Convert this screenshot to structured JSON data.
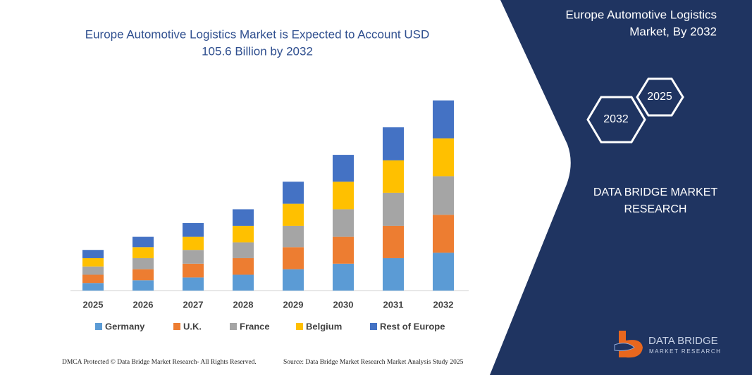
{
  "chart_data": {
    "type": "bar",
    "stacked": true,
    "title": "Europe Automotive Logistics Market is Expected to Account USD 105.6 Billion by 2032",
    "categories": [
      "2025",
      "2026",
      "2027",
      "2028",
      "2029",
      "2030",
      "2031",
      "2032"
    ],
    "series": [
      {
        "name": "Germany",
        "color": "#5b9bd5",
        "values": [
          11,
          15,
          19,
          23,
          31,
          39,
          47,
          55
        ]
      },
      {
        "name": "U.K.",
        "color": "#ed7d31",
        "values": [
          12,
          16,
          20,
          24,
          32,
          39,
          47,
          55
        ]
      },
      {
        "name": "France",
        "color": "#a5a5a5",
        "values": [
          12,
          16,
          20,
          23,
          31,
          40,
          48,
          56
        ]
      },
      {
        "name": "Belgium",
        "color": "#ffc000",
        "values": [
          12,
          16,
          19,
          24,
          32,
          40,
          47,
          55
        ]
      },
      {
        "name": "Rest of Europe",
        "color": "#4472c4",
        "values": [
          12,
          15,
          20,
          24,
          32,
          39,
          48,
          55
        ]
      }
    ],
    "ylim": [
      0,
      290
    ],
    "legend": "bottom"
  },
  "panel": {
    "title": "Europe Automotive Logistics Market, By 2032",
    "hexagons": [
      "2032",
      "2025"
    ],
    "brand": "DATA BRIDGE MARKET RESEARCH",
    "logo": {
      "name": "DATA BRIDGE",
      "tagline": "MARKET RESEARCH"
    }
  },
  "footer": {
    "left": "DMCA Protected © Data Bridge Market Research- All Rights Reserved.",
    "right": "Source: Data Bridge Market Research Market Analysis Study 2025"
  }
}
